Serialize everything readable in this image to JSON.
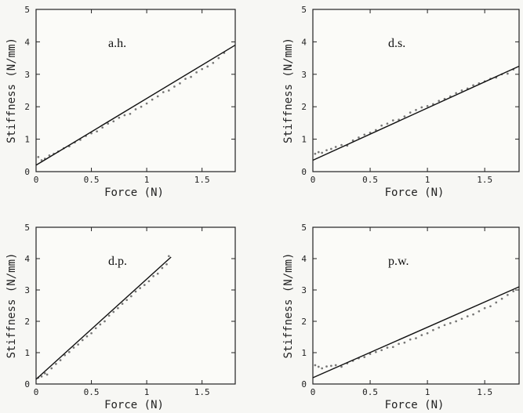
{
  "chart_data": [
    {
      "type": "scatter",
      "title": "a.h.",
      "xlabel": "Force (N)",
      "ylabel": "Stiffness (N/mm)",
      "xlim": [
        0,
        1.8
      ],
      "ylim": [
        0,
        5
      ],
      "xticks": [
        0,
        0.5,
        1,
        1.5
      ],
      "yticks": [
        0,
        1,
        2,
        3,
        4,
        5
      ],
      "xtick_labels": [
        "0",
        "0.5",
        "1",
        "1.5"
      ],
      "ytick_labels": [
        "0",
        "1",
        "2",
        "3",
        "4",
        "5"
      ],
      "fit_line": {
        "x": [
          0.0,
          1.8
        ],
        "y": [
          0.2,
          3.9
        ]
      },
      "series": [
        {
          "x": [
            0.02,
            0.05,
            0.08,
            0.12,
            0.16,
            0.2,
            0.25,
            0.3,
            0.35,
            0.4,
            0.45,
            0.5,
            0.55,
            0.6,
            0.65,
            0.7,
            0.75,
            0.8,
            0.85,
            0.9,
            0.95,
            1.0,
            1.05,
            1.1,
            1.15,
            1.2,
            1.25,
            1.3,
            1.35,
            1.4,
            1.45,
            1.5,
            1.55,
            1.6,
            1.65,
            1.7
          ],
          "y": [
            0.45,
            0.35,
            0.4,
            0.5,
            0.55,
            0.62,
            0.72,
            0.78,
            0.9,
            0.98,
            1.1,
            1.18,
            1.24,
            1.36,
            1.48,
            1.55,
            1.66,
            1.74,
            1.78,
            1.92,
            2.0,
            2.1,
            2.22,
            2.32,
            2.45,
            2.5,
            2.62,
            2.72,
            2.86,
            2.92,
            3.06,
            3.16,
            3.24,
            3.35,
            3.5,
            3.66
          ]
        }
      ]
    },
    {
      "type": "scatter",
      "title": "d.s.",
      "xlabel": "Force (N)",
      "ylabel": "Stiffness (N/mm)",
      "xlim": [
        0,
        1.8
      ],
      "ylim": [
        0,
        5
      ],
      "xticks": [
        0,
        0.5,
        1,
        1.5
      ],
      "yticks": [
        0,
        1,
        2,
        3,
        4,
        5
      ],
      "xtick_labels": [
        "0",
        "0.5",
        "1",
        "1.5"
      ],
      "ytick_labels": [
        "0",
        "1",
        "2",
        "3",
        "4",
        "5"
      ],
      "fit_line": {
        "x": [
          0.0,
          1.8
        ],
        "y": [
          0.35,
          3.25
        ]
      },
      "series": [
        {
          "x": [
            0.02,
            0.05,
            0.08,
            0.12,
            0.16,
            0.2,
            0.25,
            0.3,
            0.35,
            0.4,
            0.45,
            0.5,
            0.55,
            0.6,
            0.65,
            0.7,
            0.75,
            0.8,
            0.85,
            0.9,
            0.95,
            1.0,
            1.05,
            1.1,
            1.15,
            1.2,
            1.25,
            1.3,
            1.35,
            1.4,
            1.45,
            1.5,
            1.55,
            1.6,
            1.65,
            1.7,
            1.75
          ],
          "y": [
            0.55,
            0.6,
            0.58,
            0.66,
            0.7,
            0.76,
            0.82,
            0.8,
            0.96,
            1.05,
            1.14,
            1.2,
            1.28,
            1.42,
            1.48,
            1.58,
            1.6,
            1.7,
            1.82,
            1.9,
            1.98,
            2.02,
            2.08,
            2.18,
            2.24,
            2.32,
            2.42,
            2.5,
            2.56,
            2.66,
            2.72,
            2.78,
            2.86,
            2.9,
            3.0,
            3.02,
            3.15
          ]
        }
      ]
    },
    {
      "type": "scatter",
      "title": "d.p.",
      "xlabel": "Force (N)",
      "ylabel": "Stiffness (N/mm)",
      "xlim": [
        0,
        1.8
      ],
      "ylim": [
        0,
        5
      ],
      "xticks": [
        0,
        0.5,
        1,
        1.5
      ],
      "yticks": [
        0,
        1,
        2,
        3,
        4,
        5
      ],
      "xtick_labels": [
        "0",
        "0.5",
        "1",
        "1.5"
      ],
      "ytick_labels": [
        "0",
        "1",
        "2",
        "3",
        "4",
        "5"
      ],
      "fit_line": {
        "x": [
          0.0,
          1.22
        ],
        "y": [
          0.15,
          4.05
        ]
      },
      "series": [
        {
          "x": [
            0.02,
            0.05,
            0.08,
            0.1,
            0.14,
            0.18,
            0.22,
            0.26,
            0.3,
            0.34,
            0.38,
            0.42,
            0.46,
            0.5,
            0.54,
            0.58,
            0.62,
            0.66,
            0.7,
            0.74,
            0.78,
            0.82,
            0.86,
            0.9,
            0.94,
            0.98,
            1.02,
            1.06,
            1.1,
            1.14,
            1.18,
            1.2
          ],
          "y": [
            0.2,
            0.24,
            0.34,
            0.3,
            0.5,
            0.64,
            0.76,
            0.92,
            1.02,
            1.16,
            1.26,
            1.4,
            1.52,
            1.62,
            1.78,
            1.9,
            2.0,
            2.18,
            2.3,
            2.42,
            2.56,
            2.68,
            2.8,
            2.95,
            3.06,
            3.16,
            3.28,
            3.44,
            3.52,
            3.7,
            3.82,
            4.08
          ]
        }
      ]
    },
    {
      "type": "scatter",
      "title": "p.w.",
      "xlabel": "Force (N)",
      "ylabel": "Stiffness (N/mm)",
      "xlim": [
        0,
        1.8
      ],
      "ylim": [
        0,
        5
      ],
      "xticks": [
        0,
        0.5,
        1,
        1.5
      ],
      "yticks": [
        0,
        1,
        2,
        3,
        4,
        5
      ],
      "xtick_labels": [
        "0",
        "0.5",
        "1",
        "1.5"
      ],
      "ytick_labels": [
        "0",
        "1",
        "2",
        "3",
        "4",
        "5"
      ],
      "fit_line": {
        "x": [
          0.0,
          1.8
        ],
        "y": [
          0.2,
          3.1
        ]
      },
      "series": [
        {
          "x": [
            0.02,
            0.05,
            0.08,
            0.12,
            0.16,
            0.2,
            0.25,
            0.3,
            0.35,
            0.4,
            0.45,
            0.5,
            0.55,
            0.6,
            0.65,
            0.7,
            0.75,
            0.8,
            0.85,
            0.9,
            0.95,
            1.0,
            1.05,
            1.1,
            1.15,
            1.2,
            1.25,
            1.3,
            1.35,
            1.4,
            1.45,
            1.5,
            1.55,
            1.6,
            1.65,
            1.7,
            1.75
          ],
          "y": [
            0.6,
            0.55,
            0.5,
            0.56,
            0.58,
            0.6,
            0.55,
            0.66,
            0.74,
            0.82,
            0.86,
            0.96,
            1.02,
            1.08,
            1.16,
            1.18,
            1.28,
            1.32,
            1.42,
            1.46,
            1.56,
            1.62,
            1.72,
            1.8,
            1.88,
            1.94,
            2.0,
            2.08,
            2.16,
            2.22,
            2.32,
            2.42,
            2.48,
            2.6,
            2.72,
            2.84,
            2.96
          ]
        }
      ]
    }
  ]
}
